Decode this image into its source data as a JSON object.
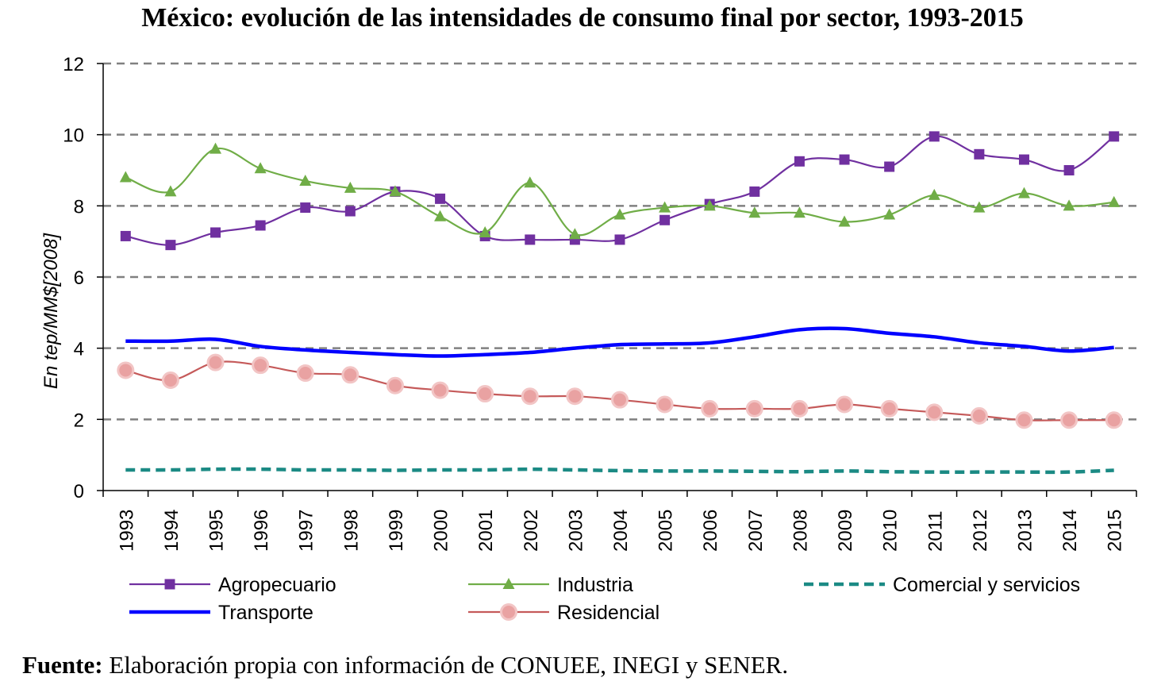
{
  "chart_data": {
    "type": "line",
    "title": "México: evolución de las intensidades de consumo final por sector, 1993-2015",
    "ylabel": "En tep/MM$[2008]",
    "xlabel": "",
    "ylim": [
      0,
      12
    ],
    "yticks": [
      0,
      2,
      4,
      6,
      8,
      10,
      12
    ],
    "grid": true,
    "categories": [
      "1993",
      "1994",
      "1995",
      "1996",
      "1997",
      "1998",
      "1999",
      "2000",
      "2001",
      "2002",
      "2003",
      "2004",
      "2005",
      "2006",
      "2007",
      "2008",
      "2009",
      "2010",
      "2011",
      "2012",
      "2013",
      "2014",
      "2015"
    ],
    "series": [
      {
        "name": "Agropecuario",
        "color": "#7030a0",
        "marker": "square",
        "style": "solid",
        "values": [
          7.15,
          6.9,
          7.25,
          7.45,
          7.95,
          7.85,
          8.4,
          8.2,
          7.15,
          7.05,
          7.05,
          7.05,
          7.6,
          8.05,
          8.4,
          9.25,
          9.3,
          9.1,
          9.95,
          9.45,
          9.3,
          9.0,
          9.95
        ]
      },
      {
        "name": "Industria",
        "color": "#70ad47",
        "marker": "triangle",
        "style": "solid",
        "values": [
          8.8,
          8.4,
          9.6,
          9.05,
          8.7,
          8.5,
          8.4,
          7.7,
          7.25,
          8.65,
          7.2,
          7.75,
          7.95,
          8.0,
          7.8,
          7.8,
          7.55,
          7.75,
          8.3,
          7.95,
          8.35,
          8.0,
          8.1
        ]
      },
      {
        "name": "Comercial y servicios",
        "color": "#1b8a84",
        "marker": "none",
        "style": "dashed",
        "values": [
          0.58,
          0.58,
          0.6,
          0.6,
          0.58,
          0.58,
          0.57,
          0.58,
          0.58,
          0.6,
          0.58,
          0.56,
          0.55,
          0.55,
          0.54,
          0.53,
          0.55,
          0.53,
          0.52,
          0.52,
          0.52,
          0.52,
          0.57
        ]
      },
      {
        "name": "Transporte",
        "color": "#0000ff",
        "marker": "none",
        "style": "solid-thick",
        "values": [
          4.2,
          4.2,
          4.25,
          4.05,
          3.95,
          3.88,
          3.82,
          3.78,
          3.82,
          3.88,
          4.0,
          4.1,
          4.12,
          4.15,
          4.32,
          4.52,
          4.55,
          4.42,
          4.32,
          4.15,
          4.05,
          3.92,
          4.02
        ]
      },
      {
        "name": "Residencial",
        "color": "#c55a5a",
        "marker": "circle",
        "style": "solid",
        "values": [
          3.38,
          3.1,
          3.6,
          3.52,
          3.3,
          3.25,
          2.95,
          2.82,
          2.72,
          2.65,
          2.65,
          2.55,
          2.42,
          2.3,
          2.3,
          2.3,
          2.42,
          2.3,
          2.2,
          2.1,
          1.98,
          1.98,
          1.98
        ]
      }
    ],
    "legend": [
      {
        "label": "Agropecuario",
        "series": 0
      },
      {
        "label": "Industria",
        "series": 1
      },
      {
        "label": "Comercial y servicios",
        "series": 2
      },
      {
        "label": "Transporte",
        "series": 3
      },
      {
        "label": "Residencial",
        "series": 4
      }
    ]
  },
  "source": {
    "label": "Fuente:",
    "text": " Elaboración propia con información de CONUEE, INEGI y SENER."
  }
}
